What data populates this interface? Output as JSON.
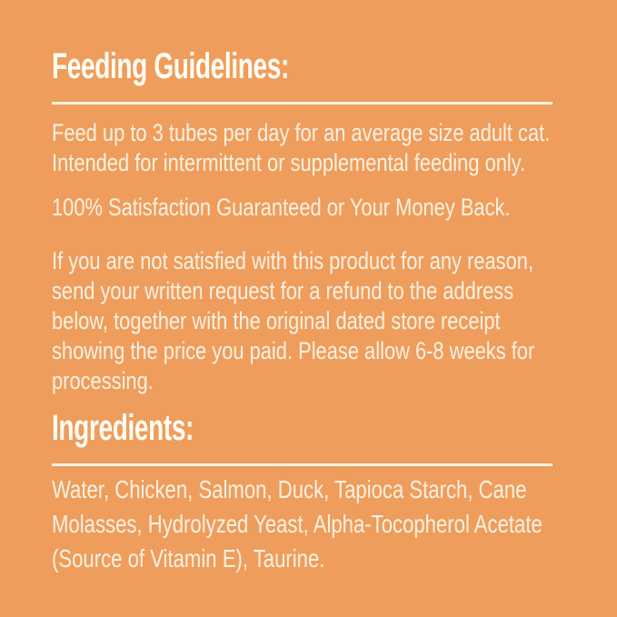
{
  "colors": {
    "background": "#EF9D5C",
    "heading": "#FFFDF4",
    "text": "#F8F1E2",
    "rule": "#F8F1E2"
  },
  "label": {
    "feeding": {
      "heading": "Feeding Guidelines:",
      "para_usage": "Feed up to 3 tubes per day for an average size adult cat.\nIntended for intermittent or supplemental feeding only.",
      "para_guarantee": "100% Satisfaction Guaranteed or Your Money Back.",
      "para_refund": "If you are not satisfied with this product for any reason,\nsend your written request for a refund to the address\nbelow, together with the original dated store receipt\nshowing the price you paid. Please allow 6-8 weeks for\nprocessing."
    },
    "ingredients": {
      "heading": "Ingredients:",
      "list_text": "Water, Chicken, Salmon, Duck, Tapioca Starch, Cane\nMolasses, Hydrolyzed Yeast, Alpha-Tocopherol Acetate\n(Source of Vitamin E), Taurine.",
      "items": [
        "Water",
        "Chicken",
        "Salmon",
        "Duck",
        "Tapioca Starch",
        "Cane Molasses",
        "Hydrolyzed Yeast",
        "Alpha-Tocopherol Acetate (Source of Vitamin E)",
        "Taurine"
      ]
    }
  }
}
